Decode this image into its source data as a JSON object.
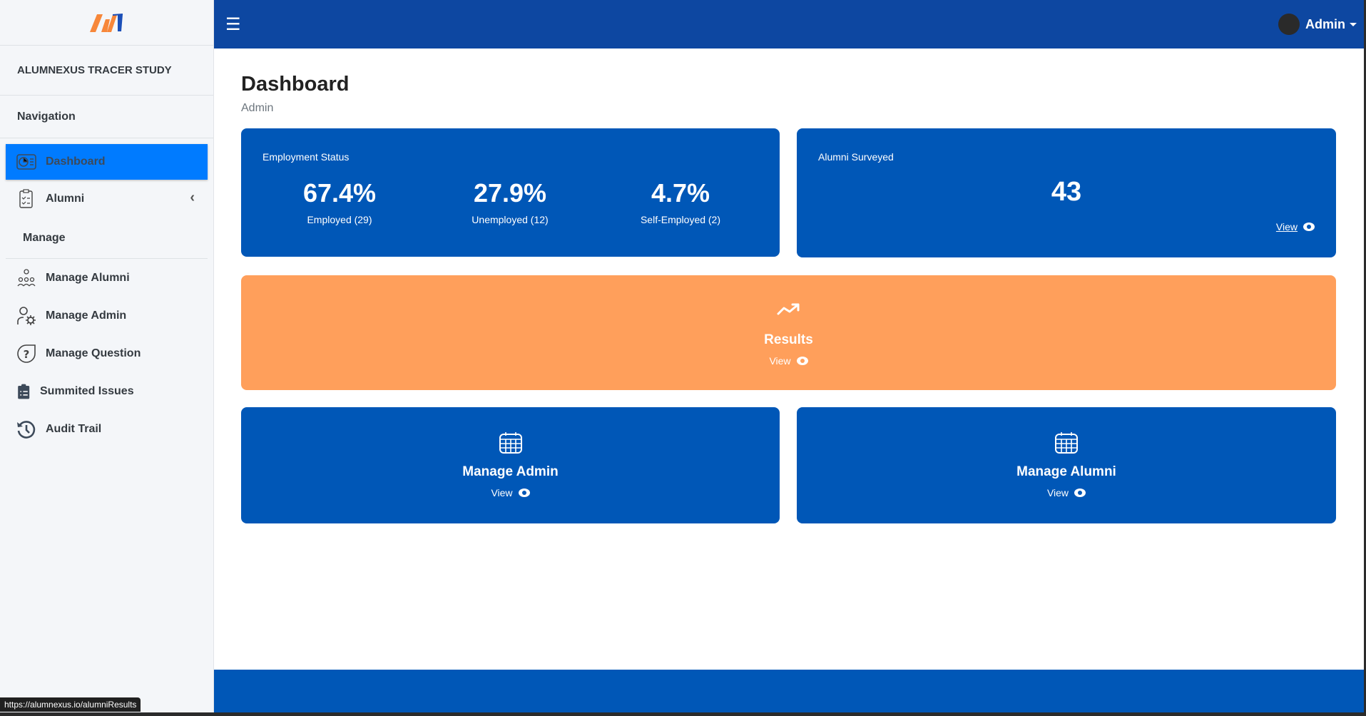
{
  "sidebar": {
    "brand": "ALUMNEXUS TRACER STUDY",
    "nav_header": "Navigation",
    "items": [
      {
        "label": "Dashboard",
        "icon": "dashboard-icon",
        "active": true
      },
      {
        "label": "Alumni",
        "icon": "clipboard-check-icon"
      }
    ],
    "section": "Manage",
    "manage_items": [
      {
        "label": "Manage Alumni",
        "icon": "users-gear-icon"
      },
      {
        "label": "Manage Admin",
        "icon": "user-gear-icon"
      },
      {
        "label": "Manage Question",
        "icon": "question-icon"
      },
      {
        "label": "Summited Issues",
        "icon": "clipboard-list-icon"
      },
      {
        "label": "Audit Trail",
        "icon": "history-icon"
      }
    ]
  },
  "topbar": {
    "user": "Admin"
  },
  "page": {
    "title": "Dashboard",
    "subtitle": "Admin"
  },
  "employment": {
    "title": "Employment Status",
    "stats": [
      {
        "pct": "67.4%",
        "label": "Employed (29)"
      },
      {
        "pct": "27.9%",
        "label": "Unemployed (12)"
      },
      {
        "pct": "4.7%",
        "label": "Self-Employed (2)"
      }
    ]
  },
  "surveyed": {
    "title": "Alumni Surveyed",
    "value": "43",
    "link": "View"
  },
  "results": {
    "title": "Results",
    "link": "View"
  },
  "manage_admin": {
    "title": "Manage Admin",
    "link": "View"
  },
  "manage_alumni": {
    "title": "Manage Alumni",
    "link": "View"
  },
  "status_url": "https://alumnexus.io/alumniResults",
  "colors": {
    "header": "#0d47a1",
    "card": "#0057b7",
    "results": "#ff9f5b",
    "active": "#007bff"
  }
}
